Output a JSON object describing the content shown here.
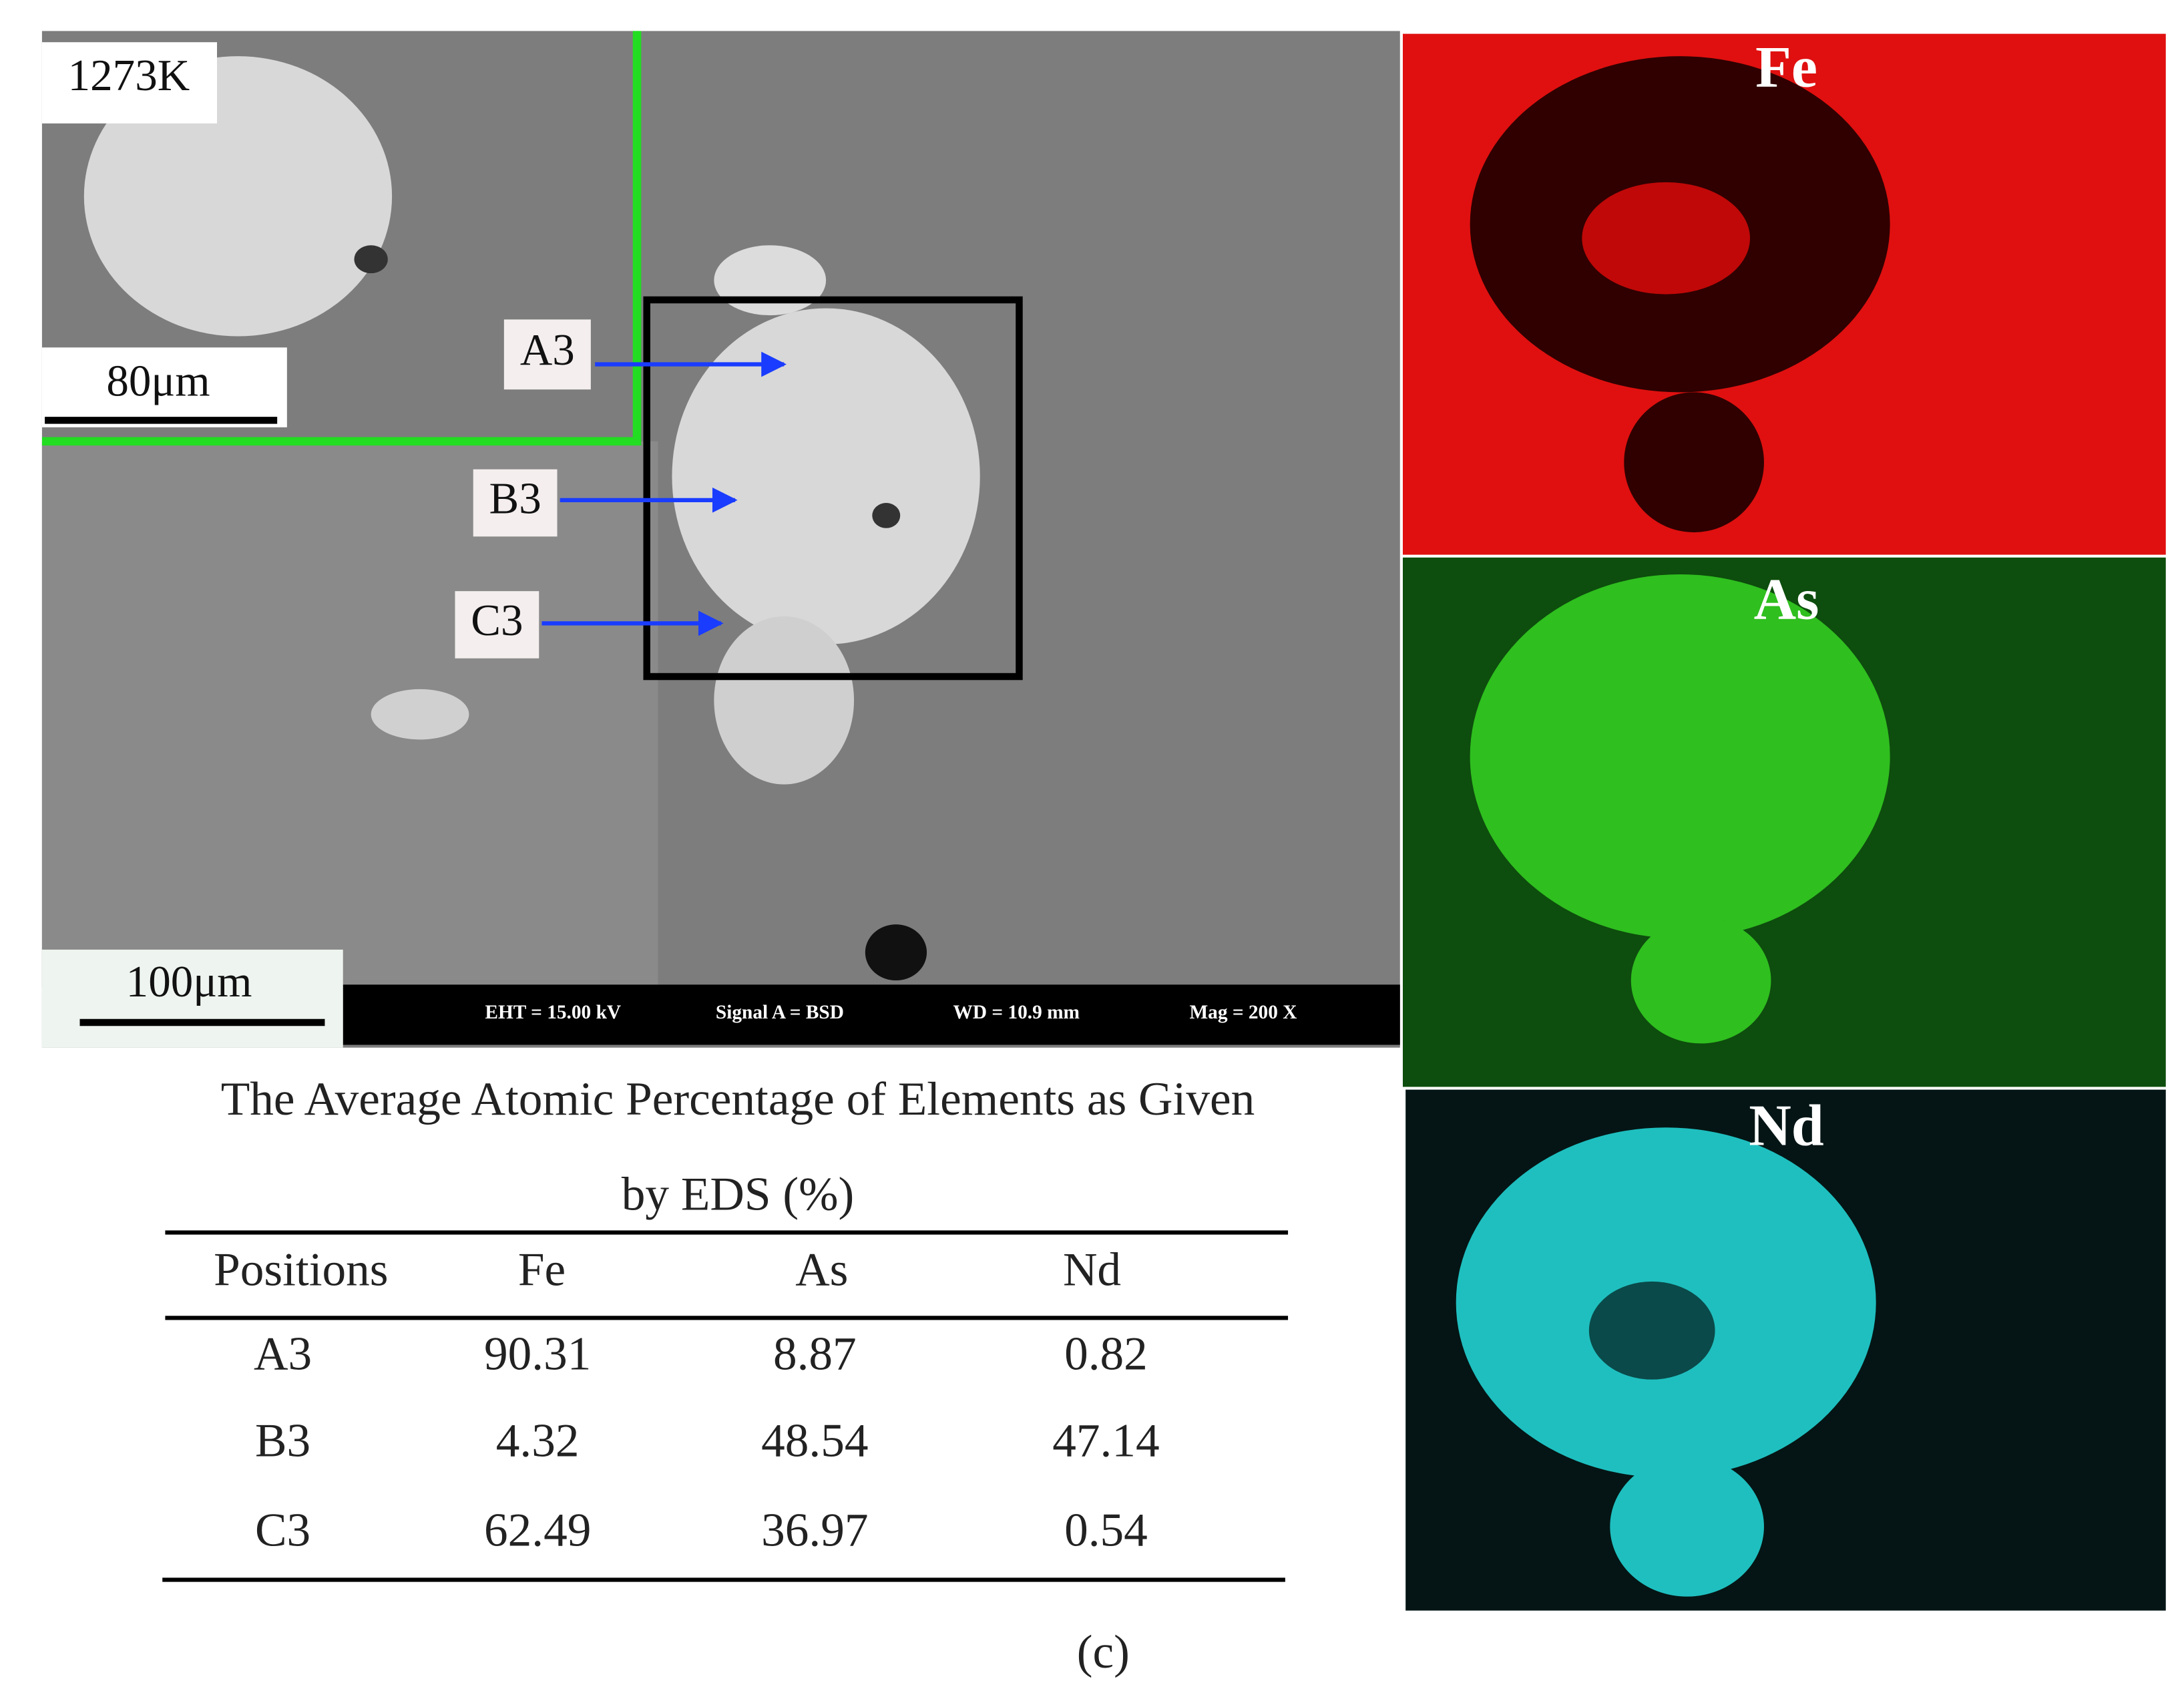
{
  "sem": {
    "inset_label": "1273K",
    "inset_scale": "80μm",
    "points": [
      "A3",
      "B3",
      "C3"
    ],
    "scale": "100μm",
    "info": [
      "EHT = 15.00 kV",
      "Signal A = BSD",
      "WD = 10.9 mm",
      "Mag =   200 X"
    ]
  },
  "maps": [
    "Fe",
    "As",
    "Nd"
  ],
  "table": {
    "title_lines": [
      "The Average Atomic Percentage of Elements as Given",
      "by EDS (%)"
    ],
    "header": [
      "Positions",
      "Fe",
      "As",
      "Nd"
    ],
    "rows": [
      [
        "A3",
        "90.31",
        "8.87",
        "0.82"
      ],
      [
        "B3",
        "4.32",
        "48.54",
        "47.14"
      ],
      [
        "C3",
        "62.49",
        "36.97",
        "0.54"
      ]
    ]
  },
  "caption": "(c)"
}
